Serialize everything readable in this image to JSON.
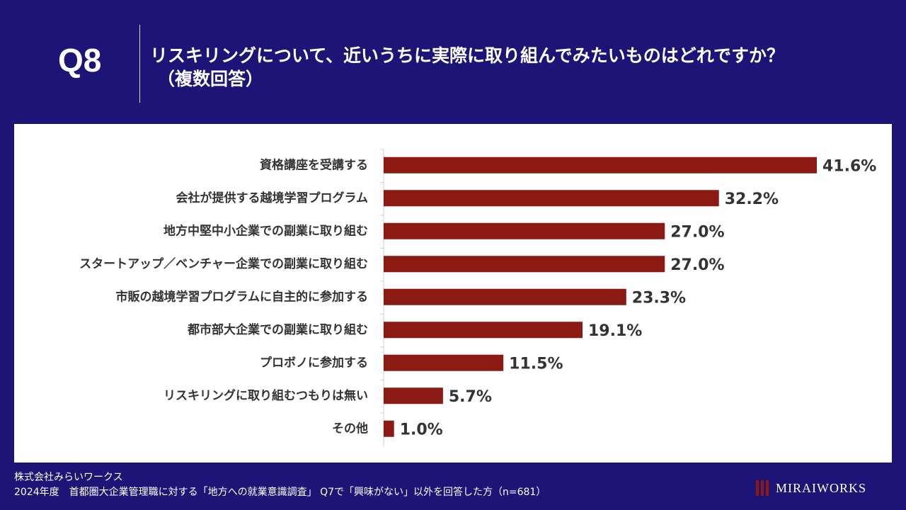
{
  "header": {
    "question_number": "Q8",
    "title_line1": "リスキリングについて、近いうちに実際に取り組んでみたいものはどれですか？",
    "title_line2": "（複数回答）"
  },
  "footer": {
    "company": "株式会社みらいワークス",
    "source": "2024年度　首都圏大企業管理職に対する「地方への就業意識調査」 Q7で「興味がない」以外を回答した方（n=681）"
  },
  "logo": {
    "text": "MIRAIWORKS"
  },
  "colors": {
    "background": "#1c1577",
    "bar": "#8b1a12",
    "panel": "#ffffff",
    "label": "#333333"
  },
  "chart_data": {
    "type": "bar",
    "orientation": "horizontal",
    "categories": [
      "資格講座を受講する",
      "会社が提供する越境学習プログラム",
      "地方中堅中小企業での副業に取り組む",
      "スタートアップ／ベンチャー企業での副業に取り組む",
      "市販の越境学習プログラムに自主的に参加する",
      "都市部大企業での副業に取り組む",
      "プロボノに参加する",
      "リスキリングに取り組むつもりは無い",
      "その他"
    ],
    "values": [
      41.6,
      32.2,
      27.0,
      27.0,
      23.3,
      19.1,
      11.5,
      5.7,
      1.0
    ],
    "value_labels": [
      "41.6%",
      "32.2%",
      "27.0%",
      "27.0%",
      "23.3%",
      "19.1%",
      "11.5%",
      "5.7%",
      "1.0%"
    ],
    "unit": "%",
    "xlim": [
      0,
      41.6
    ],
    "title": "",
    "xlabel": "",
    "ylabel": "",
    "grid": false,
    "legend": "none"
  }
}
